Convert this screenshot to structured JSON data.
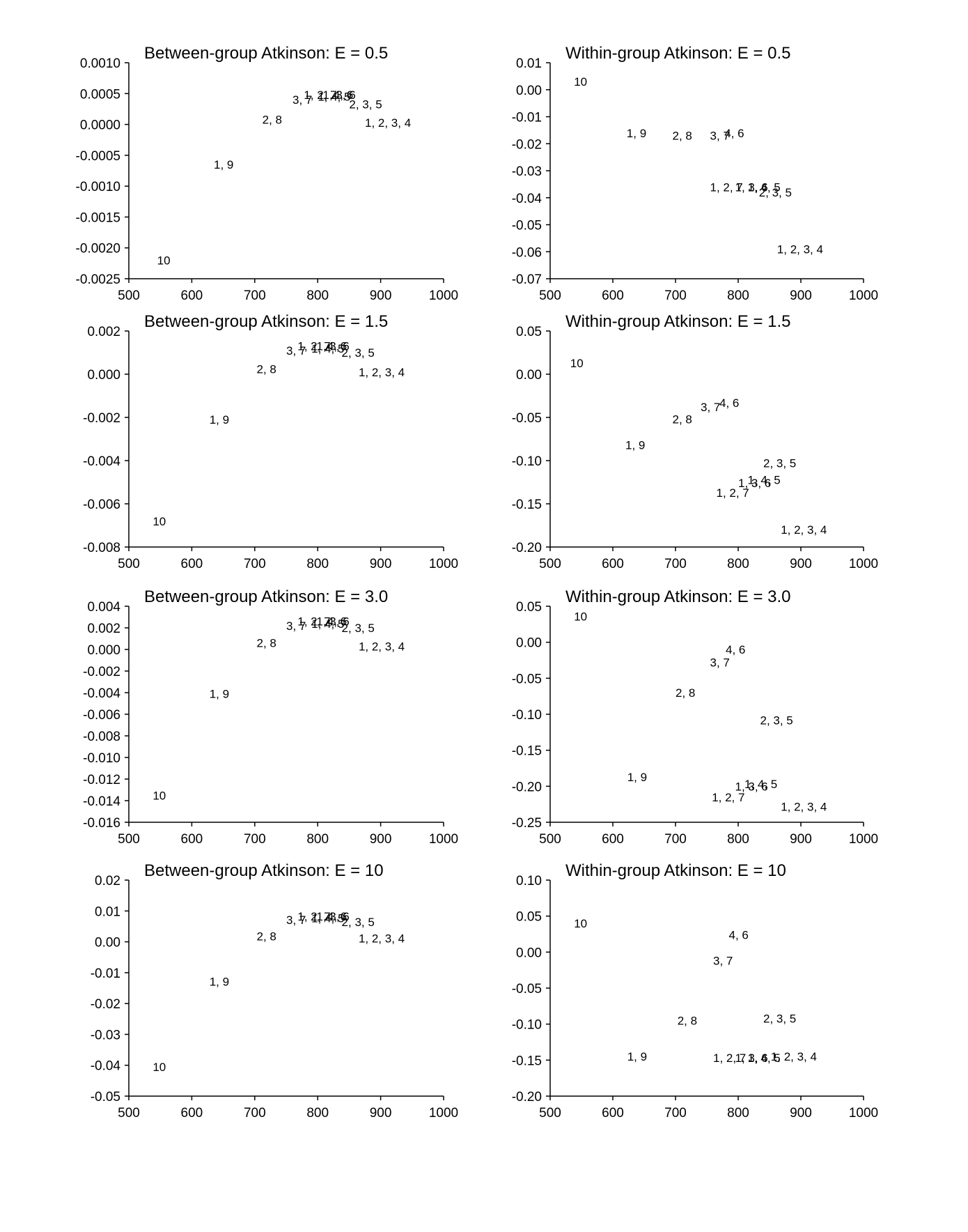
{
  "chart_data": [
    {
      "type": "scatter",
      "title": "Between-group Atkinson: E = 0.5",
      "xlim": [
        500,
        1000
      ],
      "ylim": [
        -0.0025,
        0.001
      ],
      "xticks": [
        500,
        600,
        700,
        800,
        900,
        1000
      ],
      "xtick_labels": [
        "500",
        "600",
        "700",
        "800",
        "900",
        "1000"
      ],
      "yticks": [
        0.001,
        0.0005,
        0,
        -0.0005,
        -0.001,
        -0.0015,
        -0.002,
        -0.0025
      ],
      "ytick_labels": [
        "0.0010",
        "0.0005",
        "0.0000",
        "-0.0005",
        "-0.0010",
        "-0.0015",
        "-0.0020",
        "-0.0025"
      ],
      "points": [
        {
          "label": "10",
          "x": 545,
          "y": -0.0022
        },
        {
          "label": "1, 9",
          "x": 635,
          "y": -0.00065
        },
        {
          "label": "2, 8",
          "x": 712,
          "y": 8e-05
        },
        {
          "label": "3, 7",
          "x": 760,
          "y": 0.0004
        },
        {
          "label": "1, 2, 7",
          "x": 778,
          "y": 0.00048
        },
        {
          "label": "1, 4, 5",
          "x": 800,
          "y": 0.00045
        },
        {
          "label": "1, 3, 6",
          "x": 808,
          "y": 0.00048
        },
        {
          "label": "4, 6",
          "x": 825,
          "y": 0.00048
        },
        {
          "label": "2, 3, 5",
          "x": 850,
          "y": 0.00033
        },
        {
          "label": "1, 2, 3, 4",
          "x": 875,
          "y": 3e-05
        }
      ]
    },
    {
      "type": "scatter",
      "title": "Within-group Atkinson: E = 0.5",
      "xlim": [
        500,
        1000
      ],
      "ylim": [
        -0.07,
        0.01
      ],
      "xticks": [
        500,
        600,
        700,
        800,
        900,
        1000
      ],
      "xtick_labels": [
        "500",
        "600",
        "700",
        "800",
        "900",
        "1000"
      ],
      "yticks": [
        0.01,
        0,
        -0.01,
        -0.02,
        -0.03,
        -0.04,
        -0.05,
        -0.06,
        -0.07
      ],
      "ytick_labels": [
        "0.01",
        "0.00",
        "-0.01",
        "-0.02",
        "-0.03",
        "-0.04",
        "-0.05",
        "-0.06",
        "-0.07"
      ],
      "points": [
        {
          "label": "10",
          "x": 538,
          "y": 0.003
        },
        {
          "label": "1, 9",
          "x": 622,
          "y": -0.016
        },
        {
          "label": "2, 8",
          "x": 695,
          "y": -0.017
        },
        {
          "label": "3, 7",
          "x": 755,
          "y": -0.017
        },
        {
          "label": "4, 6",
          "x": 778,
          "y": -0.016
        },
        {
          "label": "1, 2, 7",
          "x": 755,
          "y": -0.036
        },
        {
          "label": "1, 3, 6",
          "x": 795,
          "y": -0.036
        },
        {
          "label": "1, 4, 5",
          "x": 815,
          "y": -0.036
        },
        {
          "label": "2, 3, 5",
          "x": 833,
          "y": -0.038
        },
        {
          "label": "1, 2, 3, 4",
          "x": 862,
          "y": -0.059
        }
      ]
    },
    {
      "type": "scatter",
      "title": "Between-group Atkinson: E = 1.5",
      "xlim": [
        500,
        1000
      ],
      "ylim": [
        -0.008,
        0.002
      ],
      "xticks": [
        500,
        600,
        700,
        800,
        900,
        1000
      ],
      "xtick_labels": [
        "500",
        "600",
        "700",
        "800",
        "900",
        "1000"
      ],
      "yticks": [
        0.002,
        0,
        -0.002,
        -0.004,
        -0.006,
        -0.008
      ],
      "ytick_labels": [
        "0.002",
        "0.000",
        "-0.002",
        "-0.004",
        "-0.006",
        "-0.008"
      ],
      "points": [
        {
          "label": "10",
          "x": 538,
          "y": -0.0068
        },
        {
          "label": "1, 9",
          "x": 628,
          "y": -0.0021
        },
        {
          "label": "2, 8",
          "x": 703,
          "y": 0.00025
        },
        {
          "label": "3, 7",
          "x": 750,
          "y": 0.0011
        },
        {
          "label": "1, 2, 7",
          "x": 768,
          "y": 0.0013
        },
        {
          "label": "1, 4, 5",
          "x": 790,
          "y": 0.0012
        },
        {
          "label": "1, 3, 6",
          "x": 798,
          "y": 0.0013
        },
        {
          "label": "4, 6",
          "x": 815,
          "y": 0.0013
        },
        {
          "label": "2, 3, 5",
          "x": 838,
          "y": 0.001
        },
        {
          "label": "1, 2, 3, 4",
          "x": 865,
          "y": 0.0001
        }
      ]
    },
    {
      "type": "scatter",
      "title": "Within-group Atkinson: E = 1.5",
      "xlim": [
        500,
        1000
      ],
      "ylim": [
        -0.2,
        0.05
      ],
      "xticks": [
        500,
        600,
        700,
        800,
        900,
        1000
      ],
      "xtick_labels": [
        "500",
        "600",
        "700",
        "800",
        "900",
        "1000"
      ],
      "yticks": [
        0.05,
        0,
        -0.05,
        -0.1,
        -0.15,
        -0.2
      ],
      "ytick_labels": [
        "0.05",
        "0.00",
        "-0.05",
        "-0.10",
        "-0.15",
        "-0.20"
      ],
      "points": [
        {
          "label": "10",
          "x": 532,
          "y": 0.013
        },
        {
          "label": "1, 9",
          "x": 620,
          "y": -0.082
        },
        {
          "label": "2, 8",
          "x": 695,
          "y": -0.052
        },
        {
          "label": "3, 7",
          "x": 740,
          "y": -0.038
        },
        {
          "label": "4, 6",
          "x": 770,
          "y": -0.033
        },
        {
          "label": "2, 3, 5",
          "x": 840,
          "y": -0.103
        },
        {
          "label": "1, 4, 5",
          "x": 815,
          "y": -0.122
        },
        {
          "label": "1, 3, 6",
          "x": 800,
          "y": -0.126
        },
        {
          "label": "1, 2, 7",
          "x": 765,
          "y": -0.137
        },
        {
          "label": "1, 2, 3, 4",
          "x": 868,
          "y": -0.18
        }
      ]
    },
    {
      "type": "scatter",
      "title": "Between-group Atkinson: E = 3.0",
      "xlim": [
        500,
        1000
      ],
      "ylim": [
        -0.016,
        0.004
      ],
      "xticks": [
        500,
        600,
        700,
        800,
        900,
        1000
      ],
      "xtick_labels": [
        "500",
        "600",
        "700",
        "800",
        "900",
        "1000"
      ],
      "yticks": [
        0.004,
        0.002,
        0,
        -0.002,
        -0.004,
        -0.006,
        -0.008,
        -0.01,
        -0.012,
        -0.014,
        -0.016
      ],
      "ytick_labels": [
        "0.004",
        "0.002",
        "0.000",
        "-0.002",
        "-0.004",
        "-0.006",
        "-0.008",
        "-0.010",
        "-0.012",
        "-0.014",
        "-0.016"
      ],
      "points": [
        {
          "label": "10",
          "x": 538,
          "y": -0.0135
        },
        {
          "label": "1, 9",
          "x": 628,
          "y": -0.0041
        },
        {
          "label": "2, 8",
          "x": 703,
          "y": 0.0006
        },
        {
          "label": "3, 7",
          "x": 750,
          "y": 0.0022
        },
        {
          "label": "1, 2, 7",
          "x": 768,
          "y": 0.0026
        },
        {
          "label": "1, 4, 5",
          "x": 790,
          "y": 0.0024
        },
        {
          "label": "1, 3, 6",
          "x": 798,
          "y": 0.0026
        },
        {
          "label": "4, 6",
          "x": 815,
          "y": 0.0026
        },
        {
          "label": "2, 3, 5",
          "x": 838,
          "y": 0.002
        },
        {
          "label": "1, 2, 3, 4",
          "x": 865,
          "y": 0.0003
        }
      ]
    },
    {
      "type": "scatter",
      "title": "Within-group Atkinson: E = 3.0",
      "xlim": [
        500,
        1000
      ],
      "ylim": [
        -0.25,
        0.05
      ],
      "xticks": [
        500,
        600,
        700,
        800,
        900,
        1000
      ],
      "xtick_labels": [
        "500",
        "600",
        "700",
        "800",
        "900",
        "1000"
      ],
      "yticks": [
        0.05,
        0,
        -0.05,
        -0.1,
        -0.15,
        -0.2,
        -0.25
      ],
      "ytick_labels": [
        "0.05",
        "0.00",
        "-0.05",
        "-0.10",
        "-0.15",
        "-0.20",
        "-0.25"
      ],
      "points": [
        {
          "label": "10",
          "x": 538,
          "y": 0.036
        },
        {
          "label": "4, 6",
          "x": 780,
          "y": -0.01
        },
        {
          "label": "3, 7",
          "x": 755,
          "y": -0.028
        },
        {
          "label": "2, 8",
          "x": 700,
          "y": -0.07
        },
        {
          "label": "2, 3, 5",
          "x": 835,
          "y": -0.108
        },
        {
          "label": "1, 9",
          "x": 623,
          "y": -0.187
        },
        {
          "label": "1, 4, 5",
          "x": 810,
          "y": -0.197
        },
        {
          "label": "1, 3, 6",
          "x": 795,
          "y": -0.2
        },
        {
          "label": "1, 2, 7",
          "x": 758,
          "y": -0.215
        },
        {
          "label": "1, 2, 3, 4",
          "x": 868,
          "y": -0.228
        }
      ]
    },
    {
      "type": "scatter",
      "title": "Between-group Atkinson: E = 10",
      "xlim": [
        500,
        1000
      ],
      "ylim": [
        -0.05,
        0.02
      ],
      "xticks": [
        500,
        600,
        700,
        800,
        900,
        1000
      ],
      "xtick_labels": [
        "500",
        "600",
        "700",
        "800",
        "900",
        "1000"
      ],
      "yticks": [
        0.02,
        0.01,
        0,
        -0.01,
        -0.02,
        -0.03,
        -0.04,
        -0.05
      ],
      "ytick_labels": [
        "0.02",
        "0.01",
        "0.00",
        "-0.01",
        "-0.02",
        "-0.03",
        "-0.04",
        "-0.05"
      ],
      "points": [
        {
          "label": "10",
          "x": 538,
          "y": -0.0405
        },
        {
          "label": "1, 9",
          "x": 628,
          "y": -0.0128
        },
        {
          "label": "2, 8",
          "x": 703,
          "y": 0.0018
        },
        {
          "label": "3, 7",
          "x": 750,
          "y": 0.0071
        },
        {
          "label": "1, 2, 7",
          "x": 768,
          "y": 0.0083
        },
        {
          "label": "1, 4, 5",
          "x": 790,
          "y": 0.0077
        },
        {
          "label": "1, 3, 6",
          "x": 798,
          "y": 0.0083
        },
        {
          "label": "4, 6",
          "x": 815,
          "y": 0.0083
        },
        {
          "label": "2, 3, 5",
          "x": 838,
          "y": 0.0065
        },
        {
          "label": "1, 2, 3, 4",
          "x": 865,
          "y": 0.0012
        }
      ]
    },
    {
      "type": "scatter",
      "title": "Within-group Atkinson: E = 10",
      "xlim": [
        500,
        1000
      ],
      "ylim": [
        -0.2,
        0.1
      ],
      "xticks": [
        500,
        600,
        700,
        800,
        900,
        1000
      ],
      "xtick_labels": [
        "500",
        "600",
        "700",
        "800",
        "900",
        "1000"
      ],
      "yticks": [
        0.1,
        0.05,
        0,
        -0.05,
        -0.1,
        -0.15,
        -0.2
      ],
      "ytick_labels": [
        "0.10",
        "0.05",
        "0.00",
        "-0.05",
        "-0.10",
        "-0.15",
        "-0.20"
      ],
      "points": [
        {
          "label": "10",
          "x": 538,
          "y": 0.04
        },
        {
          "label": "4, 6",
          "x": 785,
          "y": 0.024
        },
        {
          "label": "3, 7",
          "x": 760,
          "y": -0.012
        },
        {
          "label": "2, 8",
          "x": 703,
          "y": -0.095
        },
        {
          "label": "2, 3, 5",
          "x": 840,
          "y": -0.092
        },
        {
          "label": "1, 9",
          "x": 623,
          "y": -0.145
        },
        {
          "label": "1, 2, 7",
          "x": 760,
          "y": -0.147
        },
        {
          "label": "1, 3, 6",
          "x": 795,
          "y": -0.147
        },
        {
          "label": "1, 4, 5",
          "x": 815,
          "y": -0.147
        },
        {
          "label": "1, 2, 3, 4",
          "x": 852,
          "y": -0.145
        }
      ]
    }
  ]
}
